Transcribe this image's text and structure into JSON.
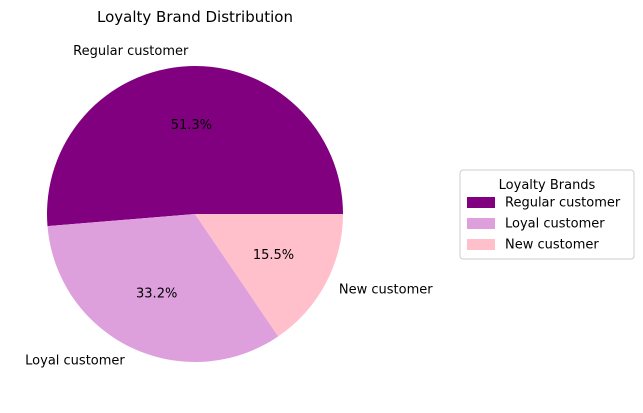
{
  "chart_data": {
    "type": "pie",
    "title": "Loyalty Brand Distribution",
    "slices": [
      {
        "label": "Regular customer",
        "percent": 51.3,
        "pct_label": "51.3%",
        "color": "#800080"
      },
      {
        "label": "Loyal customer",
        "percent": 33.2,
        "pct_label": "33.2%",
        "color": "#dda0dd"
      },
      {
        "label": "New customer",
        "percent": 15.5,
        "pct_label": "15.5%",
        "color": "#ffc0cb"
      }
    ],
    "start_angle_deg": 0,
    "direction": "counterclockwise",
    "legend": {
      "title": "Loyalty Brands",
      "placement": "center-right"
    }
  }
}
